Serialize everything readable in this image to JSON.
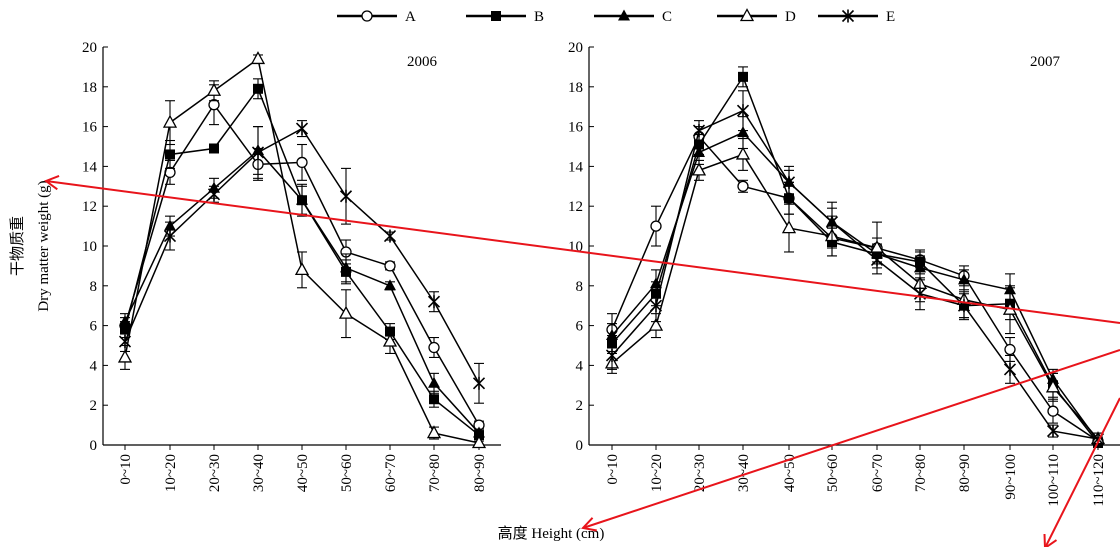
{
  "colors": {
    "ink": "#000000",
    "marker_fill": "#ffffff",
    "annotation": "#e8141b"
  },
  "legend": {
    "placement": "top-center",
    "items": [
      {
        "name": "A",
        "marker": "open-circle"
      },
      {
        "name": "B",
        "marker": "filled-square"
      },
      {
        "name": "C",
        "marker": "filled-triangle"
      },
      {
        "name": "D",
        "marker": "open-triangle"
      },
      {
        "name": "E",
        "marker": "asterisk"
      }
    ]
  },
  "axis_titles": {
    "y_cn": "干物质重",
    "y_en": "Dry matter weight (g)",
    "x": "高度 Height (cm)"
  },
  "chart_data": [
    {
      "type": "line",
      "title": "2006",
      "ylim": [
        0,
        20
      ],
      "yticks": [
        0,
        2,
        4,
        6,
        8,
        10,
        12,
        14,
        16,
        18,
        20
      ],
      "grid": false,
      "categories": [
        "0~10",
        "10~20",
        "20~30",
        "30~40",
        "40~50",
        "50~60",
        "60~70",
        "70~80",
        "80~90"
      ],
      "series": [
        {
          "name": "A",
          "values": [
            6.0,
            13.7,
            17.1,
            14.1,
            14.2,
            9.7,
            9.0,
            4.9,
            1.0
          ],
          "errors": [
            0.4,
            0.6,
            1.0,
            0.8,
            0.9,
            0.6,
            0.2,
            0.5,
            0.2
          ]
        },
        {
          "name": "B",
          "values": [
            5.8,
            14.6,
            14.9,
            17.9,
            12.3,
            8.7,
            5.7,
            2.3,
            0.5
          ],
          "errors": [
            0.4,
            0.7,
            0.2,
            0.5,
            0.8,
            0.6,
            0.4,
            0.4,
            0.2
          ]
        },
        {
          "name": "C",
          "values": [
            6.2,
            11.0,
            12.9,
            14.8,
            12.3,
            8.9,
            8.0,
            3.1,
            0.6
          ],
          "errors": [
            0.4,
            0.5,
            0.5,
            1.2,
            0.7,
            0.7,
            0.2,
            0.5,
            0.2
          ]
        },
        {
          "name": "D",
          "values": [
            4.4,
            16.2,
            17.8,
            19.4,
            8.8,
            6.6,
            5.2,
            0.6,
            0.1
          ],
          "errors": [
            0.6,
            1.1,
            0.5,
            0.2,
            0.9,
            1.2,
            0.6,
            0.3,
            0.1
          ]
        },
        {
          "name": "E",
          "values": [
            5.2,
            10.5,
            12.6,
            14.7,
            15.9,
            12.5,
            10.5,
            7.2,
            3.1
          ],
          "errors": [
            0.5,
            0.7,
            0.4,
            1.3,
            0.4,
            1.4,
            0.2,
            0.5,
            1.0
          ]
        }
      ]
    },
    {
      "type": "line",
      "title": "2007",
      "ylim": [
        0,
        20
      ],
      "yticks": [
        0,
        2,
        4,
        6,
        8,
        10,
        12,
        14,
        16,
        18,
        20
      ],
      "grid": false,
      "categories": [
        "0~10",
        "10~20",
        "20~30",
        "30~40",
        "40~50",
        "50~60",
        "60~70",
        "70~80",
        "80~90",
        "90~100",
        "100~110",
        "110~120"
      ],
      "series": [
        {
          "name": "A",
          "values": [
            5.8,
            11.0,
            15.5,
            13.0,
            12.4,
            10.4,
            9.9,
            9.3,
            8.5,
            4.8,
            1.7,
            0.2
          ],
          "errors": [
            0.8,
            1.0,
            0.5,
            0.3,
            0.8,
            0.5,
            0.5,
            0.4,
            0.5,
            0.6,
            0.6,
            0.2
          ]
        },
        {
          "name": "B",
          "values": [
            5.1,
            7.6,
            15.1,
            18.5,
            12.4,
            10.2,
            9.6,
            9.2,
            7.0,
            7.1,
            3.0,
            0.1
          ],
          "errors": [
            0.4,
            0.6,
            0.5,
            0.5,
            0.8,
            0.7,
            0.4,
            0.6,
            0.6,
            0.8,
            0.6,
            0.1
          ]
        },
        {
          "name": "C",
          "values": [
            5.5,
            8.1,
            14.7,
            15.7,
            13.2,
            11.2,
            9.6,
            8.9,
            8.3,
            7.8,
            3.3,
            0.2
          ],
          "errors": [
            0.6,
            0.7,
            0.6,
            0.8,
            0.6,
            0.7,
            0.5,
            0.6,
            0.5,
            0.8,
            0.5,
            0.2
          ]
        },
        {
          "name": "D",
          "values": [
            4.1,
            6.0,
            13.8,
            14.6,
            10.9,
            10.5,
            9.9,
            8.1,
            7.3,
            6.8,
            2.9,
            0.3
          ],
          "errors": [
            0.5,
            0.6,
            0.5,
            0.8,
            1.2,
            1.0,
            1.3,
            0.9,
            0.9,
            1.2,
            0.7,
            0.3
          ]
        },
        {
          "name": "E",
          "values": [
            4.5,
            7.0,
            15.8,
            16.8,
            13.2,
            11.2,
            9.3,
            7.6,
            7.0,
            3.8,
            0.7,
            0.3
          ],
          "errors": [
            0.7,
            0.8,
            0.5,
            1.0,
            0.8,
            1.0,
            0.4,
            0.8,
            0.7,
            0.7,
            0.3,
            0.3
          ]
        }
      ]
    }
  ]
}
